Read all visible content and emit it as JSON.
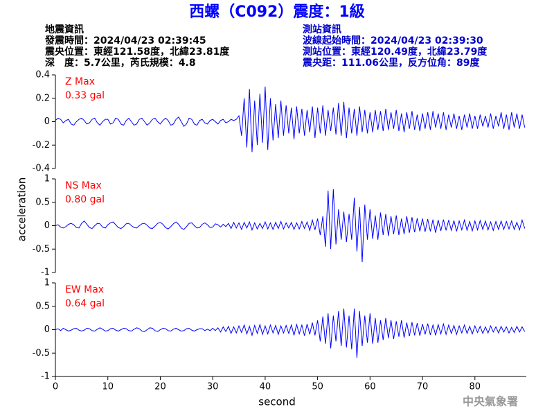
{
  "chart_data": {
    "type": "line",
    "title": "西螺（C092）震度：1級",
    "info_left": [
      "地震資訊",
      "發震時間：2024/04/23 02:39:45",
      "震央位置：東經121.58度，北緯23.81度",
      "深　度：5.7公里，芮氏規模：4.8"
    ],
    "info_right": [
      "測站資訊",
      "波線起始時間：2024/04/23 02:39:30",
      "測站位置：東經120.49度，北緯23.79度",
      "震央距：111.06公里，反方位角：89度"
    ],
    "ylabel": "acceleration",
    "xlabel": "second",
    "footer": "中央氣象署",
    "xlim": [
      0,
      89.8
    ],
    "xticks": [
      0,
      10,
      20,
      30,
      40,
      50,
      60,
      70,
      80
    ],
    "x": [
      0,
      0.5,
      1,
      1.5,
      2,
      2.5,
      3,
      3.5,
      4,
      4.5,
      5,
      5.5,
      6,
      6.5,
      7,
      7.5,
      8,
      8.5,
      9,
      9.5,
      10,
      10.5,
      11,
      11.5,
      12,
      12.5,
      13,
      13.5,
      14,
      14.5,
      15,
      15.5,
      16,
      16.5,
      17,
      17.5,
      18,
      18.5,
      19,
      19.5,
      20,
      20.5,
      21,
      21.5,
      22,
      22.5,
      23,
      23.5,
      24,
      24.5,
      25,
      25.5,
      26,
      26.5,
      27,
      27.5,
      28,
      28.5,
      29,
      29.5,
      30,
      30.5,
      31,
      31.5,
      32,
      32.5,
      33,
      33.5,
      34,
      34.5,
      35,
      35.5,
      36,
      36.5,
      37,
      37.5,
      38,
      38.5,
      39,
      39.5,
      40,
      40.5,
      41,
      41.5,
      42,
      42.5,
      43,
      43.5,
      44,
      44.5,
      45,
      45.5,
      46,
      46.5,
      47,
      47.5,
      48,
      48.5,
      49,
      49.5,
      50,
      50.5,
      51,
      51.5,
      52,
      52.5,
      53,
      53.5,
      54,
      54.5,
      55,
      55.5,
      56,
      56.5,
      57,
      57.5,
      58,
      58.5,
      59,
      59.5,
      60,
      60.5,
      61,
      61.5,
      62,
      62.5,
      63,
      63.5,
      64,
      64.5,
      65,
      65.5,
      66,
      66.5,
      67,
      67.5,
      68,
      68.5,
      69,
      69.5,
      70,
      70.5,
      71,
      71.5,
      72,
      72.5,
      73,
      73.5,
      74,
      74.5,
      75,
      75.5,
      76,
      76.5,
      77,
      77.5,
      78,
      78.5,
      79,
      79.5,
      80,
      80.5,
      81,
      81.5,
      82,
      82.5,
      83,
      83.5,
      84,
      84.5,
      85,
      85.5,
      86,
      86.5,
      87,
      87.5,
      88,
      88.5,
      89,
      89.5
    ],
    "series": [
      {
        "name": "Z Max",
        "max_label": "0.33 gal",
        "color": "#0000ff",
        "label_color": "#ff0000",
        "ylim": [
          -0.4,
          0.4
        ],
        "yticks": [
          -0.4,
          -0.2,
          0,
          0.2,
          0.4
        ],
        "values": [
          0.01,
          0.03,
          0.02,
          -0.01,
          0.01,
          0.02,
          -0.02,
          -0.03,
          0.0,
          0.02,
          0.03,
          0.01,
          -0.02,
          -0.01,
          0.02,
          0.03,
          -0.01,
          -0.03,
          0.0,
          0.02,
          0.02,
          -0.02,
          -0.01,
          0.03,
          0.02,
          -0.02,
          -0.03,
          0.01,
          0.03,
          0.0,
          -0.03,
          -0.02,
          0.02,
          0.03,
          0.0,
          -0.03,
          -0.01,
          0.02,
          0.03,
          0.0,
          -0.02,
          0.01,
          0.03,
          0.01,
          -0.03,
          -0.02,
          0.02,
          0.04,
          0.0,
          -0.04,
          -0.02,
          0.03,
          0.02,
          -0.02,
          -0.03,
          0.01,
          0.02,
          -0.01,
          -0.02,
          0.01,
          0.02,
          0.0,
          -0.02,
          0.01,
          0.02,
          -0.01,
          0.0,
          0.02,
          0.01,
          0.02,
          0.05,
          -0.12,
          0.2,
          -0.22,
          0.28,
          -0.26,
          0.18,
          -0.2,
          0.24,
          -0.18,
          0.3,
          -0.24,
          0.2,
          -0.16,
          0.15,
          -0.14,
          0.18,
          -0.12,
          0.14,
          -0.1,
          0.12,
          -0.15,
          0.13,
          -0.1,
          0.11,
          -0.12,
          0.1,
          -0.09,
          0.13,
          -0.14,
          0.12,
          -0.1,
          0.14,
          -0.12,
          0.1,
          -0.08,
          0.12,
          -0.11,
          0.16,
          -0.12,
          0.17,
          -0.14,
          0.12,
          -0.1,
          0.11,
          -0.12,
          0.13,
          -0.09,
          0.1,
          -0.1,
          0.08,
          -0.09,
          0.1,
          -0.07,
          0.09,
          -0.08,
          0.11,
          -0.07,
          0.08,
          -0.06,
          0.1,
          -0.08,
          0.07,
          -0.09,
          0.08,
          -0.06,
          0.09,
          -0.07,
          0.06,
          -0.08,
          0.07,
          -0.06,
          0.08,
          -0.07,
          0.09,
          -0.05,
          0.07,
          -0.06,
          0.08,
          -0.07,
          0.06,
          -0.05,
          0.07,
          -0.06,
          0.05,
          -0.07,
          0.06,
          -0.05,
          0.07,
          -0.06,
          0.05,
          -0.06,
          0.06,
          -0.04,
          0.05,
          -0.05,
          0.07,
          -0.06,
          0.05,
          -0.04,
          0.08,
          -0.06,
          0.06,
          -0.07,
          0.08,
          -0.05,
          0.07,
          -0.06,
          0.06,
          -0.05
        ]
      },
      {
        "name": "NS Max",
        "max_label": "0.80 gal",
        "color": "#0000ff",
        "label_color": "#ff0000",
        "ylim": [
          -1,
          1
        ],
        "yticks": [
          -1,
          -0.5,
          0,
          0.5,
          1
        ],
        "values": [
          0.0,
          0.02,
          -0.03,
          -0.05,
          -0.02,
          0.03,
          0.05,
          0.02,
          -0.04,
          -0.05,
          0.05,
          0.1,
          0.03,
          -0.04,
          -0.06,
          0.0,
          0.05,
          0.04,
          -0.03,
          -0.05,
          0.02,
          0.06,
          0.08,
          0.02,
          -0.04,
          -0.06,
          -0.02,
          0.04,
          0.05,
          0.0,
          -0.04,
          -0.05,
          0.0,
          0.04,
          0.05,
          0.01,
          -0.05,
          -0.06,
          -0.01,
          0.05,
          0.07,
          0.03,
          -0.04,
          -0.07,
          -0.02,
          0.04,
          0.08,
          0.03,
          -0.05,
          -0.08,
          -0.02,
          0.05,
          0.06,
          0.0,
          -0.05,
          -0.04,
          0.03,
          0.06,
          0.02,
          -0.04,
          -0.03,
          0.04,
          0.02,
          -0.03,
          0.03,
          -0.02,
          0.05,
          -0.06,
          0.07,
          -0.05,
          0.06,
          -0.08,
          0.07,
          -0.05,
          0.08,
          -0.09,
          0.06,
          -0.07,
          0.05,
          -0.06,
          0.08,
          -0.07,
          0.06,
          -0.08,
          0.07,
          -0.06,
          0.09,
          -0.07,
          0.06,
          -0.05,
          0.07,
          -0.08,
          0.06,
          -0.07,
          0.09,
          -0.06,
          0.08,
          -0.1,
          0.12,
          -0.09,
          0.15,
          -0.2,
          0.2,
          -0.45,
          0.75,
          -0.5,
          0.78,
          -0.4,
          0.35,
          -0.3,
          0.3,
          -0.35,
          0.25,
          -0.3,
          0.6,
          -0.55,
          0.4,
          -0.78,
          0.45,
          -0.3,
          0.35,
          -0.28,
          0.22,
          -0.3,
          0.28,
          -0.2,
          0.25,
          -0.22,
          0.2,
          -0.18,
          0.22,
          -0.2,
          0.15,
          -0.18,
          0.2,
          -0.15,
          0.18,
          -0.14,
          0.16,
          -0.12,
          0.15,
          -0.13,
          0.14,
          -0.12,
          0.13,
          -0.15,
          0.12,
          -0.11,
          0.13,
          -0.1,
          0.12,
          -0.1,
          0.11,
          -0.12,
          0.1,
          -0.09,
          0.12,
          -0.1,
          0.09,
          -0.11,
          0.1,
          -0.09,
          0.11,
          -0.08,
          0.1,
          -0.09,
          0.08,
          -0.1,
          0.09,
          -0.08,
          0.1,
          -0.08,
          0.09,
          -0.07,
          0.1,
          -0.08,
          0.07,
          -0.09,
          0.12,
          -0.06
        ]
      },
      {
        "name": "EW Max",
        "max_label": "0.64 gal",
        "color": "#0000ff",
        "label_color": "#ff0000",
        "ylim": [
          -1,
          1
        ],
        "yticks": [
          -1,
          -0.5,
          0,
          0.5,
          1
        ],
        "values": [
          0.0,
          0.02,
          -0.02,
          0.03,
          0.0,
          -0.03,
          -0.01,
          0.02,
          0.03,
          -0.01,
          -0.03,
          -0.01,
          0.03,
          0.02,
          -0.02,
          -0.03,
          0.01,
          0.04,
          0.01,
          -0.03,
          -0.02,
          0.02,
          0.03,
          -0.01,
          -0.03,
          0.0,
          0.03,
          0.02,
          -0.02,
          -0.03,
          0.01,
          0.04,
          0.02,
          -0.03,
          -0.04,
          0.0,
          0.04,
          0.03,
          -0.02,
          -0.04,
          0.0,
          0.03,
          0.02,
          -0.02,
          -0.03,
          0.01,
          0.03,
          0.0,
          -0.03,
          -0.02,
          0.02,
          0.03,
          -0.01,
          -0.03,
          0.0,
          0.02,
          0.02,
          -0.02,
          0.01,
          -0.02,
          0.03,
          -0.02,
          0.04,
          -0.05,
          0.06,
          -0.04,
          0.07,
          -0.08,
          0.06,
          -0.07,
          0.08,
          -0.06,
          0.1,
          -0.09,
          0.07,
          -0.12,
          0.09,
          -0.08,
          0.11,
          -0.1,
          0.08,
          -0.09,
          0.1,
          -0.07,
          0.09,
          -0.1,
          0.08,
          -0.07,
          0.09,
          -0.08,
          0.1,
          -0.12,
          0.11,
          -0.09,
          0.1,
          -0.13,
          0.12,
          -0.1,
          0.15,
          -0.12,
          0.2,
          -0.25,
          0.28,
          -0.3,
          0.35,
          -0.4,
          0.3,
          -0.25,
          0.4,
          -0.35,
          0.45,
          -0.38,
          0.3,
          -0.42,
          0.45,
          -0.6,
          0.4,
          -0.35,
          0.3,
          -0.28,
          0.35,
          -0.3,
          0.25,
          -0.28,
          0.2,
          -0.22,
          0.25,
          -0.18,
          0.2,
          -0.2,
          0.18,
          -0.15,
          0.2,
          -0.17,
          0.15,
          -0.14,
          0.16,
          -0.12,
          0.14,
          -0.13,
          0.12,
          -0.1,
          0.13,
          -0.11,
          0.1,
          -0.12,
          0.11,
          -0.09,
          0.12,
          -0.1,
          0.1,
          -0.08,
          0.09,
          -0.1,
          0.08,
          -0.07,
          0.1,
          -0.08,
          0.07,
          -0.09,
          0.08,
          -0.06,
          0.07,
          -0.08,
          0.06,
          -0.07,
          0.08,
          -0.05,
          0.06,
          -0.07,
          0.07,
          -0.05,
          0.06,
          -0.07,
          0.05,
          -0.06,
          0.07,
          -0.05,
          0.06,
          -0.04
        ]
      }
    ]
  }
}
